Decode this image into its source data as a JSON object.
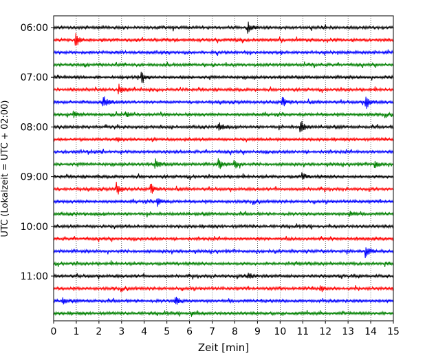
{
  "chart_data": {
    "type": "line",
    "title": "",
    "xlabel": "Zeit  [min]",
    "ylabel": "UTC (Lokalzeit = UTC + 02:00)",
    "xlim": [
      0,
      15
    ],
    "x_ticks": [
      "0",
      "1",
      "2",
      "3",
      "4",
      "5",
      "6",
      "7",
      "8",
      "9",
      "10",
      "11",
      "12",
      "13",
      "14",
      "15"
    ],
    "y_tick_labels": [
      "06:00",
      "07:00",
      "08:00",
      "09:00",
      "10:00",
      "11:00"
    ],
    "trace_start_times": [
      "06:00",
      "06:15",
      "06:30",
      "06:45",
      "07:00",
      "07:15",
      "07:30",
      "07:45",
      "08:00",
      "08:15",
      "08:30",
      "08:45",
      "09:00",
      "09:15",
      "09:30",
      "09:45",
      "10:00",
      "10:15",
      "10:30",
      "10:45",
      "11:00",
      "11:15",
      "11:30",
      "11:45"
    ],
    "trace_colors": [
      "#000000",
      "#ff0000",
      "#0000ff",
      "#008000"
    ],
    "vertical_gridlines": "dotted",
    "events": [
      {
        "trace": 0,
        "t": 8.6,
        "amp": 1.6
      },
      {
        "trace": 1,
        "t": 1.0,
        "amp": 2.0
      },
      {
        "trace": 4,
        "t": 3.9,
        "amp": 1.8
      },
      {
        "trace": 5,
        "t": 2.9,
        "amp": 1.2
      },
      {
        "trace": 6,
        "t": 2.2,
        "amp": 2.6
      },
      {
        "trace": 6,
        "t": 10.1,
        "amp": 1.8
      },
      {
        "trace": 6,
        "t": 13.8,
        "amp": 2.3
      },
      {
        "trace": 7,
        "t": 0.9,
        "amp": 1.3
      },
      {
        "trace": 7,
        "t": 3.2,
        "amp": 0.9
      },
      {
        "trace": 8,
        "t": 7.3,
        "amp": 1.7
      },
      {
        "trace": 8,
        "t": 10.9,
        "amp": 2.5
      },
      {
        "trace": 9,
        "t": 2.8,
        "amp": 0.9
      },
      {
        "trace": 11,
        "t": 4.5,
        "amp": 1.6
      },
      {
        "trace": 11,
        "t": 7.3,
        "amp": 1.8
      },
      {
        "trace": 11,
        "t": 8.0,
        "amp": 1.8
      },
      {
        "trace": 11,
        "t": 14.2,
        "amp": 1.4
      },
      {
        "trace": 12,
        "t": 11.0,
        "amp": 1.2
      },
      {
        "trace": 13,
        "t": 2.8,
        "amp": 2.2
      },
      {
        "trace": 13,
        "t": 4.3,
        "amp": 1.8
      },
      {
        "trace": 14,
        "t": 4.6,
        "amp": 1.5
      },
      {
        "trace": 15,
        "t": 13.1,
        "amp": 1.1
      },
      {
        "trace": 18,
        "t": 13.8,
        "amp": 2.2
      },
      {
        "trace": 20,
        "t": 8.6,
        "amp": 1.3
      },
      {
        "trace": 21,
        "t": 11.8,
        "amp": 1.3
      },
      {
        "trace": 22,
        "t": 0.4,
        "amp": 1.0
      },
      {
        "trace": 22,
        "t": 5.4,
        "amp": 1.7
      },
      {
        "trace": 23,
        "t": 6.1,
        "amp": 0.8
      }
    ]
  }
}
